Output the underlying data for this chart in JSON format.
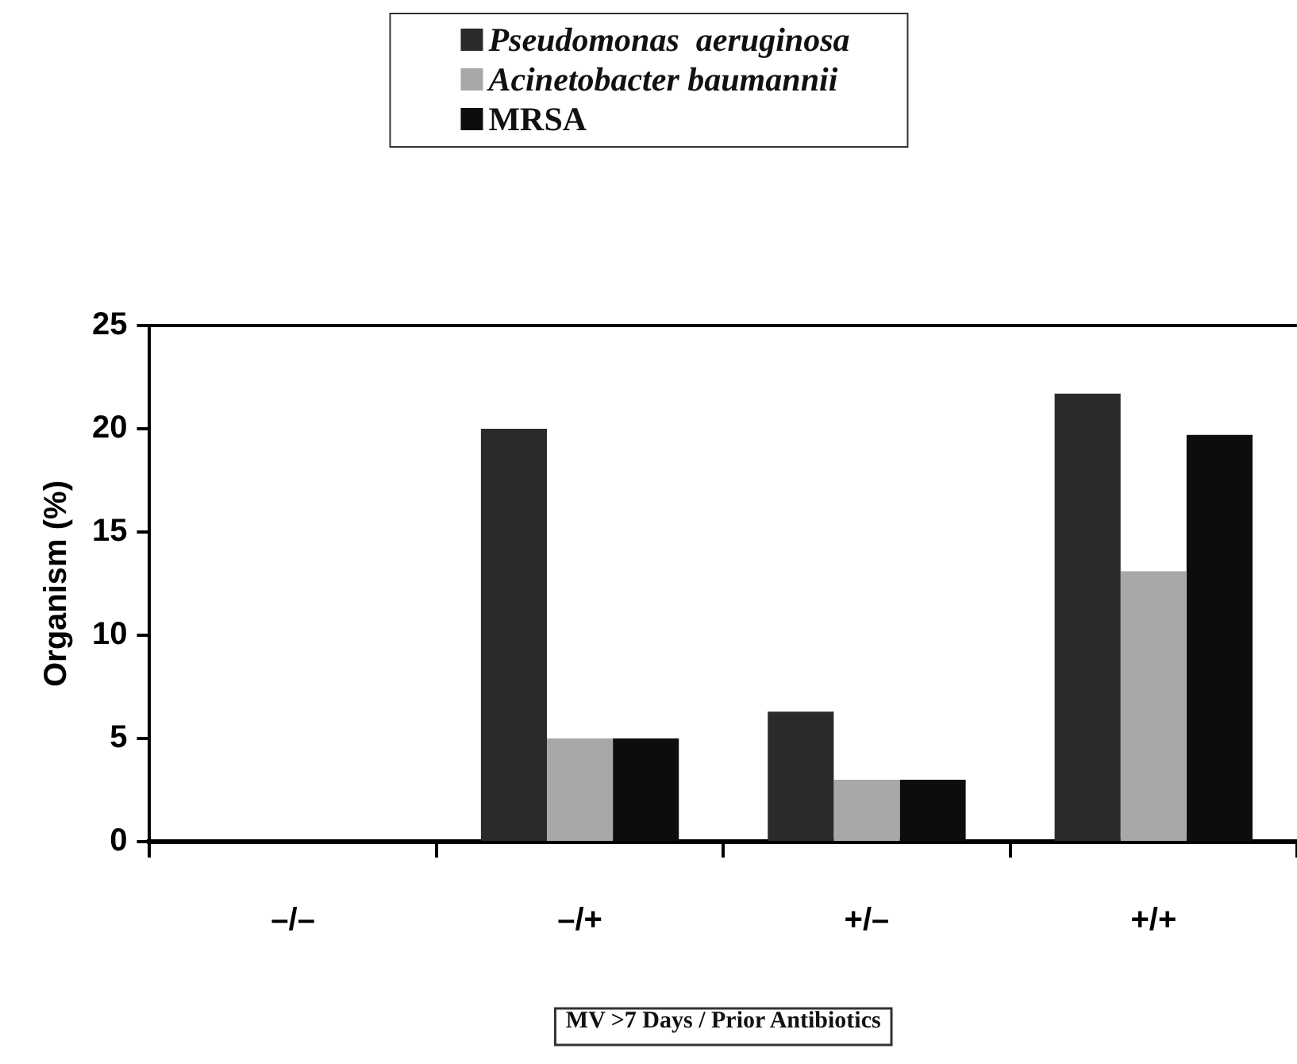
{
  "chart_data": {
    "type": "bar",
    "ylabel": "Organism (%)",
    "xlabel": "MV >7 Days / Prior Antibiotics",
    "categories": [
      "–/–",
      "–/+",
      "+/–",
      "+/+"
    ],
    "series": [
      {
        "name": "Pseudomonas  aeruginosa",
        "color": "#2a2a2a",
        "values": [
          0,
          20,
          6.3,
          21.7
        ]
      },
      {
        "name": "Acinetobacter baumannii",
        "color": "#a8a8a8",
        "values": [
          0,
          5,
          3,
          13.1
        ]
      },
      {
        "name": "MRSA",
        "color": "#0d0d0d",
        "values": [
          0,
          5,
          3,
          19.7
        ]
      }
    ],
    "ylim": [
      0,
      25
    ],
    "yticks": [
      0,
      5,
      10,
      15,
      20,
      25
    ],
    "legend": "top",
    "grid": false
  }
}
